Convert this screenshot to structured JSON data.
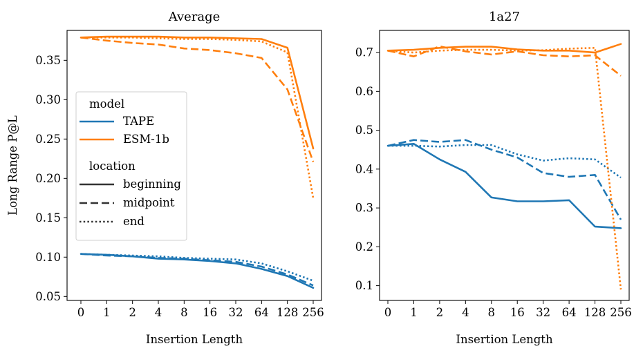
{
  "chart_data": [
    {
      "type": "line",
      "title": "Average",
      "xlabel": "Insertion Length",
      "ylabel": "Long Range P@L",
      "categories": [
        "0",
        "1",
        "2",
        "4",
        "8",
        "16",
        "32",
        "64",
        "128",
        "256"
      ],
      "ylim": [
        0.045,
        0.388
      ],
      "yticks": [
        "0.05",
        "0.10",
        "0.15",
        "0.20",
        "0.25",
        "0.30",
        "0.35"
      ],
      "grid": false,
      "legend": {
        "placement": "center-left",
        "model_title": "model",
        "location_title": "location",
        "models": [
          {
            "label": "TAPE",
            "color": "#1f77b4"
          },
          {
            "label": "ESM-1b",
            "color": "#ff7f0e"
          }
        ],
        "locations": [
          {
            "label": "beginning",
            "style": "solid"
          },
          {
            "label": "midpoint",
            "style": "dashed"
          },
          {
            "label": "end",
            "style": "dotted"
          }
        ]
      },
      "series": [
        {
          "model": "TAPE",
          "location": "beginning",
          "color": "#1f77b4",
          "style": "solid",
          "values": [
            0.104,
            0.103,
            0.101,
            0.098,
            0.097,
            0.095,
            0.092,
            0.085,
            0.076,
            0.061
          ]
        },
        {
          "model": "TAPE",
          "location": "midpoint",
          "color": "#1f77b4",
          "style": "dashed",
          "values": [
            0.104,
            0.102,
            0.101,
            0.099,
            0.098,
            0.096,
            0.094,
            0.088,
            0.078,
            0.064
          ]
        },
        {
          "model": "TAPE",
          "location": "end",
          "color": "#1f77b4",
          "style": "dotted",
          "values": [
            0.104,
            0.103,
            0.102,
            0.101,
            0.099,
            0.098,
            0.097,
            0.092,
            0.082,
            0.07
          ]
        },
        {
          "model": "ESM-1b",
          "location": "beginning",
          "color": "#ff7f0e",
          "style": "solid",
          "values": [
            0.379,
            0.38,
            0.38,
            0.38,
            0.379,
            0.379,
            0.378,
            0.377,
            0.366,
            0.238
          ]
        },
        {
          "model": "ESM-1b",
          "location": "midpoint",
          "color": "#ff7f0e",
          "style": "dashed",
          "values": [
            0.379,
            0.375,
            0.372,
            0.37,
            0.365,
            0.363,
            0.359,
            0.353,
            0.313,
            0.221
          ]
        },
        {
          "model": "ESM-1b",
          "location": "end",
          "color": "#ff7f0e",
          "style": "dotted",
          "values": [
            0.379,
            0.379,
            0.379,
            0.378,
            0.377,
            0.377,
            0.376,
            0.374,
            0.36,
            0.175
          ]
        }
      ]
    },
    {
      "type": "line",
      "title": "1a27",
      "xlabel": "Insertion Length",
      "ylabel": "",
      "categories": [
        "0",
        "1",
        "2",
        "4",
        "8",
        "16",
        "32",
        "64",
        "128",
        "256"
      ],
      "ylim": [
        0.062,
        0.757
      ],
      "yticks": [
        "0.1",
        "0.2",
        "0.3",
        "0.4",
        "0.5",
        "0.6",
        "0.7"
      ],
      "grid": false,
      "series": [
        {
          "model": "TAPE",
          "location": "beginning",
          "color": "#1f77b4",
          "style": "solid",
          "values": [
            0.46,
            0.465,
            0.425,
            0.393,
            0.327,
            0.317,
            0.317,
            0.32,
            0.252,
            0.248
          ]
        },
        {
          "model": "TAPE",
          "location": "midpoint",
          "color": "#1f77b4",
          "style": "dashed",
          "values": [
            0.46,
            0.475,
            0.47,
            0.475,
            0.45,
            0.43,
            0.39,
            0.38,
            0.385,
            0.27
          ]
        },
        {
          "model": "TAPE",
          "location": "end",
          "color": "#1f77b4",
          "style": "dotted",
          "values": [
            0.46,
            0.46,
            0.458,
            0.462,
            0.462,
            0.438,
            0.422,
            0.428,
            0.425,
            0.378
          ]
        },
        {
          "model": "ESM-1b",
          "location": "beginning",
          "color": "#ff7f0e",
          "style": "solid",
          "values": [
            0.705,
            0.707,
            0.712,
            0.715,
            0.715,
            0.708,
            0.705,
            0.705,
            0.7,
            0.722
          ]
        },
        {
          "model": "ESM-1b",
          "location": "midpoint",
          "color": "#ff7f0e",
          "style": "dashed",
          "values": [
            0.705,
            0.69,
            0.716,
            0.703,
            0.695,
            0.703,
            0.693,
            0.69,
            0.693,
            0.64
          ]
        },
        {
          "model": "ESM-1b",
          "location": "end",
          "color": "#ff7f0e",
          "style": "dotted",
          "values": [
            0.705,
            0.7,
            0.705,
            0.707,
            0.707,
            0.705,
            0.706,
            0.71,
            0.712,
            0.09
          ]
        }
      ]
    }
  ]
}
